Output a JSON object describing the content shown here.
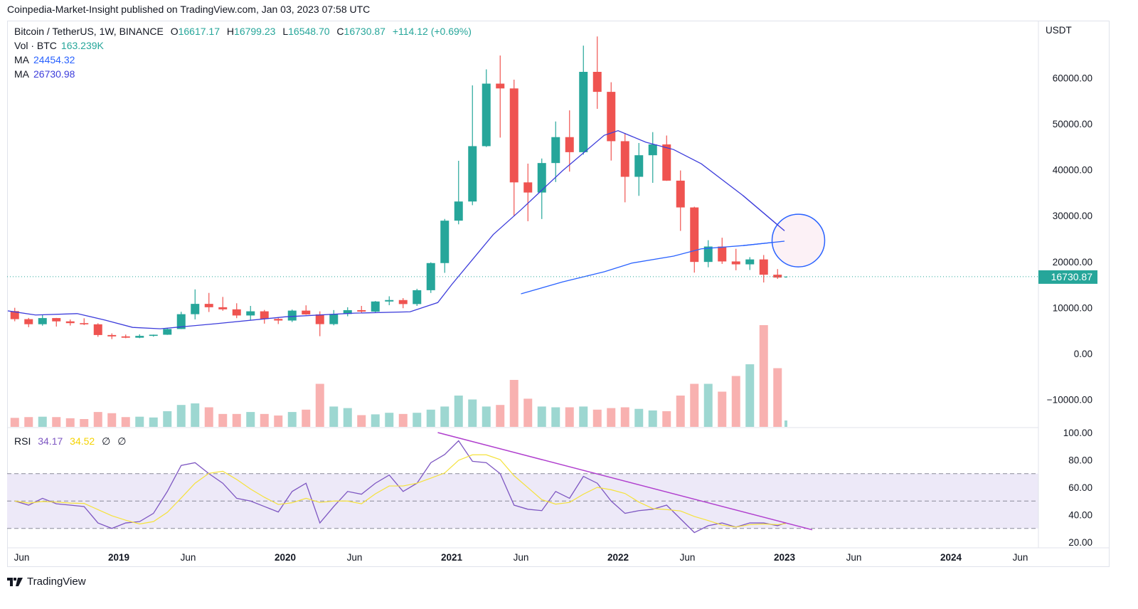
{
  "header": {
    "published": "Coinpedia-Market-Insight published on TradingView.com, Jan 03, 2023 07:58 UTC"
  },
  "legend": {
    "symbol": "Bitcoin / TetherUS, 1W, BINANCE",
    "o_label": "O",
    "open": "16617.17",
    "h_label": "H",
    "high": "16799.23",
    "l_label": "L",
    "low": "16548.70",
    "c_label": "C",
    "close": "16730.87",
    "change": "+114.12 (+0.69%)",
    "vol_label": "Vol · BTC",
    "vol_value": "163.239K",
    "ma1_label": "MA",
    "ma1_value": "24454.32",
    "ma2_label": "MA",
    "ma2_value": "26730.98",
    "rsi_label": "RSI",
    "rsi_value": "34.17",
    "rsi_ma_value": "34.52",
    "rsi_extra1": "∅",
    "rsi_extra2": "∅"
  },
  "footer": {
    "brand": "TradingView"
  },
  "colors": {
    "up": "#26a69a",
    "down": "#ef5350",
    "ma1": "#2962ff",
    "ma2": "#3d3ddb",
    "rsi": "#7e57c2",
    "rsi_ma": "#f5e23b",
    "trendline": "#b03fce",
    "price_label": "#26a69a"
  },
  "chart_data": {
    "type": "candlestick",
    "price_axis": {
      "unit": "USDT",
      "ticks": [
        "60000.00",
        "50000.00",
        "40000.00",
        "30000.00",
        "20000.00",
        "10000.00",
        "0.00",
        "−10000.00"
      ],
      "tick_values": [
        60000,
        50000,
        40000,
        30000,
        20000,
        10000,
        0,
        -10000
      ]
    },
    "last_price": "16730.87",
    "time_axis": [
      {
        "label": "Jun",
        "date": "2018-06",
        "bold": false
      },
      {
        "label": "2019",
        "date": "2019-01",
        "bold": true
      },
      {
        "label": "Jun",
        "date": "2019-06",
        "bold": false
      },
      {
        "label": "2020",
        "date": "2020-01",
        "bold": true
      },
      {
        "label": "Jun",
        "date": "2020-06",
        "bold": false
      },
      {
        "label": "2021",
        "date": "2021-01",
        "bold": true
      },
      {
        "label": "Jun",
        "date": "2021-06",
        "bold": false
      },
      {
        "label": "2022",
        "date": "2022-01",
        "bold": true
      },
      {
        "label": "Jun",
        "date": "2022-06",
        "bold": false
      },
      {
        "label": "2023",
        "date": "2023-01",
        "bold": true
      },
      {
        "label": "Jun",
        "date": "2023-06",
        "bold": false
      },
      {
        "label": "2024",
        "date": "2024-01",
        "bold": true
      },
      {
        "label": "Jun",
        "date": "2024-06",
        "bold": false
      }
    ],
    "candles": [
      [
        "2018-05",
        9240,
        9964,
        7032,
        7494,
        230
      ],
      [
        "2018-06",
        7494,
        7760,
        5750,
        6391,
        250
      ],
      [
        "2018-07",
        6391,
        8500,
        6070,
        7730,
        260
      ],
      [
        "2018-08",
        7730,
        7760,
        5880,
        7011,
        250
      ],
      [
        "2018-09",
        7011,
        7410,
        6100,
        6626,
        220
      ],
      [
        "2018-10",
        6626,
        7680,
        6200,
        6371,
        200
      ],
      [
        "2018-11",
        6371,
        6600,
        3652,
        4041,
        380
      ],
      [
        "2018-12",
        4041,
        4400,
        3156,
        3742,
        350
      ],
      [
        "2019-01",
        3742,
        4140,
        3349,
        3458,
        250
      ],
      [
        "2019-02",
        3458,
        4198,
        3350,
        3854,
        260
      ],
      [
        "2019-03",
        3854,
        4140,
        3690,
        4105,
        240
      ],
      [
        "2019-04",
        4105,
        5600,
        4070,
        5350,
        400
      ],
      [
        "2019-05",
        5350,
        9100,
        5330,
        8574,
        560
      ],
      [
        "2019-06",
        8574,
        13970,
        7440,
        10817,
        600
      ],
      [
        "2019-07",
        10817,
        13200,
        9050,
        10085,
        500
      ],
      [
        "2019-08",
        10085,
        12330,
        9320,
        9630,
        330
      ],
      [
        "2019-09",
        9630,
        10950,
        7710,
        8293,
        330
      ],
      [
        "2019-10",
        8293,
        10370,
        7300,
        9199,
        380
      ],
      [
        "2019-11",
        9199,
        9500,
        6515,
        7546,
        330
      ],
      [
        "2019-12",
        7546,
        7750,
        6430,
        7194,
        290
      ],
      [
        "2020-01",
        7194,
        9580,
        6870,
        9350,
        380
      ],
      [
        "2020-02",
        9350,
        10500,
        8450,
        8523,
        440
      ],
      [
        "2020-03",
        8523,
        9190,
        3782,
        6410,
        1100
      ],
      [
        "2020-04",
        6410,
        9468,
        6150,
        8620,
        520
      ],
      [
        "2020-05",
        8620,
        10080,
        8117,
        9448,
        480
      ],
      [
        "2020-06",
        9448,
        10380,
        8833,
        9138,
        300
      ],
      [
        "2020-07",
        9138,
        11444,
        8893,
        11335,
        320
      ],
      [
        "2020-08",
        11335,
        12468,
        10525,
        11649,
        360
      ],
      [
        "2020-09",
        11649,
        12067,
        9875,
        10776,
        330
      ],
      [
        "2020-10",
        10776,
        14100,
        10375,
        13791,
        360
      ],
      [
        "2020-11",
        13791,
        19863,
        13195,
        19695,
        440
      ],
      [
        "2020-12",
        19695,
        29300,
        17572,
        28923,
        520
      ],
      [
        "2021-01",
        28923,
        41950,
        28130,
        33092,
        800
      ],
      [
        "2021-02",
        33092,
        58352,
        32296,
        45135,
        700
      ],
      [
        "2021-03",
        45135,
        61844,
        44950,
        58740,
        520
      ],
      [
        "2021-04",
        58740,
        64854,
        47000,
        57694,
        560
      ],
      [
        "2021-05",
        57694,
        59592,
        30000,
        37253,
        1200
      ],
      [
        "2021-06",
        37253,
        41330,
        28805,
        35045,
        720
      ],
      [
        "2021-07",
        35045,
        42448,
        29278,
        41461,
        520
      ],
      [
        "2021-08",
        41461,
        50500,
        37332,
        47100,
        500
      ],
      [
        "2021-09",
        47100,
        52920,
        39600,
        43824,
        500
      ],
      [
        "2021-10",
        43824,
        66999,
        43283,
        61300,
        520
      ],
      [
        "2021-11",
        61300,
        69000,
        53256,
        56950,
        440
      ],
      [
        "2021-12",
        56950,
        59041,
        42000,
        46216,
        480
      ],
      [
        "2022-01",
        46216,
        47990,
        32917,
        38466,
        500
      ],
      [
        "2022-02",
        38466,
        45821,
        34322,
        43160,
        460
      ],
      [
        "2022-03",
        43160,
        48190,
        37155,
        45510,
        420
      ],
      [
        "2022-04",
        45510,
        47444,
        37578,
        37630,
        400
      ],
      [
        "2022-05",
        37630,
        39845,
        26700,
        31801,
        800
      ],
      [
        "2022-06",
        31801,
        31957,
        17622,
        19942,
        1100
      ],
      [
        "2022-07",
        19942,
        24668,
        18781,
        23293,
        1100
      ],
      [
        "2022-08",
        23293,
        25211,
        19520,
        20050,
        900
      ],
      [
        "2022-09",
        20050,
        22799,
        18125,
        19422,
        1300
      ],
      [
        "2022-10",
        19422,
        20988,
        18190,
        20490,
        1600
      ],
      [
        "2022-11",
        20490,
        21446,
        15476,
        17164,
        2600
      ],
      [
        "2022-12",
        17164,
        18387,
        16256,
        16542,
        1500
      ],
      [
        "2023-01",
        16617.17,
        16799.23,
        16548.7,
        16730.87,
        163.239
      ]
    ],
    "candle_fields": [
      "date",
      "open",
      "high",
      "low",
      "close",
      "volume_k_btc"
    ],
    "moving_averages": [
      {
        "name": "MA",
        "value": "24454.32",
        "color": "#2962ff",
        "points": [
          [
            "2021-06",
            13000
          ],
          [
            "2021-09",
            15600
          ],
          [
            "2021-12",
            17800
          ],
          [
            "2022-02",
            19700
          ],
          [
            "2022-05",
            21200
          ],
          [
            "2022-07",
            22800
          ],
          [
            "2022-10",
            23500
          ],
          [
            "2023-01",
            24454
          ]
        ]
      },
      {
        "name": "MA",
        "value": "26730.98",
        "color": "#3d3ddb",
        "points": [
          [
            "2018-05",
            9300
          ],
          [
            "2018-07",
            8400
          ],
          [
            "2018-10",
            8700
          ],
          [
            "2018-12",
            7300
          ],
          [
            "2019-02",
            5700
          ],
          [
            "2019-04",
            5400
          ],
          [
            "2019-08",
            6500
          ],
          [
            "2020-01",
            8000
          ],
          [
            "2020-06",
            8800
          ],
          [
            "2020-10",
            9100
          ],
          [
            "2020-12",
            11100
          ],
          [
            "2021-01",
            15000
          ],
          [
            "2021-04",
            25900
          ],
          [
            "2021-06",
            31300
          ],
          [
            "2021-09",
            39800
          ],
          [
            "2021-12",
            47500
          ],
          [
            "2022-01",
            48500
          ],
          [
            "2022-03",
            46000
          ],
          [
            "2022-05",
            44400
          ],
          [
            "2022-07",
            41300
          ],
          [
            "2022-10",
            34400
          ],
          [
            "2023-01",
            26731
          ]
        ]
      }
    ],
    "annotation_circle": {
      "date": "2023-02",
      "price": 24600,
      "fill": "#fcf0f5",
      "stroke": "#2962ff"
    },
    "rsi": {
      "ticks": [
        "100.00",
        "80.00",
        "60.00",
        "40.00",
        "20.00"
      ],
      "tick_values": [
        100,
        80,
        60,
        40,
        20
      ],
      "bands": [
        70,
        50,
        30
      ],
      "values": [
        50,
        47,
        52,
        48,
        47,
        46,
        34,
        30,
        34,
        35,
        41,
        57,
        76,
        78,
        70,
        63,
        52,
        50,
        46,
        42,
        57,
        63,
        34,
        46,
        57,
        55,
        63,
        69,
        57,
        63,
        78,
        84,
        94,
        79,
        78,
        70,
        47,
        44,
        43,
        57,
        52,
        68,
        63,
        50,
        41,
        43,
        44,
        47,
        37,
        27,
        32,
        34,
        31,
        34,
        34,
        32,
        34.17
      ],
      "trendline": [
        [
          "2020-12",
          100
        ],
        [
          "2023-03",
          29
        ]
      ]
    }
  }
}
